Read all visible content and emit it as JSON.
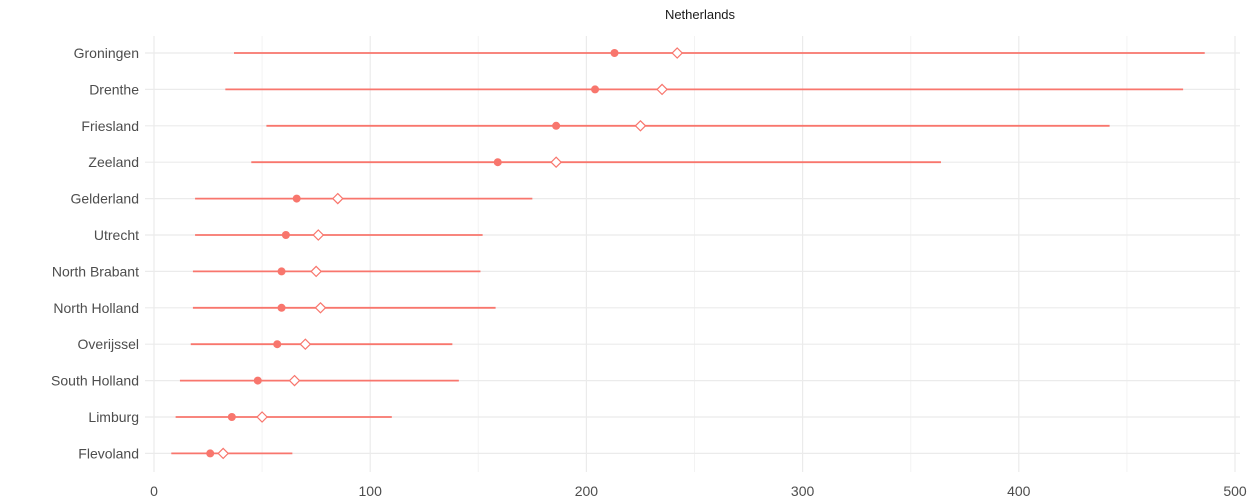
{
  "chart_data": {
    "type": "dot-interval",
    "title": "Netherlands",
    "xlabel": "",
    "ylabel": "",
    "xlim": [
      0,
      500
    ],
    "x_ticks": [
      "0",
      "100",
      "200",
      "300",
      "400",
      "500"
    ],
    "x_tick_values": [
      0,
      100,
      200,
      300,
      400,
      500
    ],
    "grid": true,
    "color": "#f8766d",
    "rows": [
      {
        "label": "Groningen",
        "low": 37,
        "point": 213,
        "diamond": 242,
        "high": 486
      },
      {
        "label": "Drenthe",
        "low": 33,
        "point": 204,
        "diamond": 235,
        "high": 476
      },
      {
        "label": "Friesland",
        "low": 52,
        "point": 186,
        "diamond": 225,
        "high": 442
      },
      {
        "label": "Zeeland",
        "low": 45,
        "point": 159,
        "diamond": 186,
        "high": 364
      },
      {
        "label": "Gelderland",
        "low": 19,
        "point": 66,
        "diamond": 85,
        "high": 175
      },
      {
        "label": "Utrecht",
        "low": 19,
        "point": 61,
        "diamond": 76,
        "high": 152
      },
      {
        "label": "North Brabant",
        "low": 18,
        "point": 59,
        "diamond": 75,
        "high": 151
      },
      {
        "label": "North Holland",
        "low": 18,
        "point": 59,
        "diamond": 77,
        "high": 158
      },
      {
        "label": "Overijssel",
        "low": 17,
        "point": 57,
        "diamond": 70,
        "high": 138
      },
      {
        "label": "South Holland",
        "low": 12,
        "point": 48,
        "diamond": 65,
        "high": 141
      },
      {
        "label": "Limburg",
        "low": 10,
        "point": 36,
        "diamond": 50,
        "high": 110
      },
      {
        "label": "Flevoland",
        "low": 8,
        "point": 26,
        "diamond": 32,
        "high": 64
      }
    ]
  }
}
